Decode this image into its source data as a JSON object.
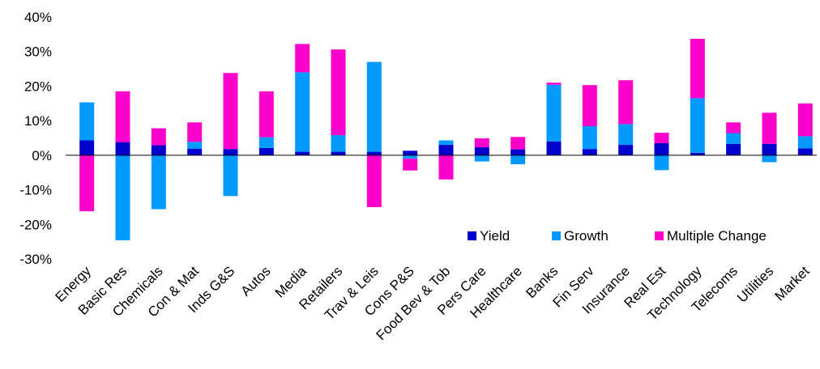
{
  "chart_data": {
    "type": "bar",
    "stacked": true,
    "categories": [
      "Energy",
      "Basic Res",
      "Chemicals",
      "Con & Mat",
      "Inds G&S",
      "Autos",
      "Media",
      "Retailers",
      "Trav & Leis",
      "Cons P&S",
      "Food Bev & Tob",
      "Pers Care",
      "Healthcare",
      "Banks",
      "Fin Serv",
      "Insurance",
      "Real Est",
      "Technology",
      "Telecoms",
      "Utilities",
      "Market"
    ],
    "series": [
      {
        "name": "Yield",
        "color": "#0000CC",
        "values": [
          4.3,
          3.8,
          2.9,
          1.9,
          1.8,
          2.1,
          1.0,
          1.0,
          1.0,
          1.3,
          3.0,
          2.3,
          1.7,
          4.0,
          1.8,
          3.0,
          3.5,
          0.7,
          3.3,
          3.3,
          2.0
        ]
      },
      {
        "name": "Growth",
        "color": "#0099FF",
        "values": [
          11.0,
          -24.6,
          -15.6,
          2.0,
          -11.8,
          3.1,
          23.0,
          4.8,
          26.0,
          -1.0,
          1.3,
          -1.8,
          -2.6,
          16.4,
          6.6,
          6.0,
          -4.3,
          15.8,
          3.1,
          -2.0,
          3.5
        ]
      },
      {
        "name": "Multiple Change",
        "color": "#FF00CC",
        "values": [
          -16.2,
          14.7,
          4.9,
          5.6,
          22.0,
          13.3,
          8.2,
          24.8,
          -15.0,
          -3.4,
          -7.0,
          2.6,
          3.6,
          0.6,
          11.9,
          12.7,
          3.0,
          17.2,
          3.1,
          9.0,
          9.5
        ]
      }
    ],
    "y_ticks": [
      "40%",
      "30%",
      "20%",
      "10%",
      "0%",
      "-10%",
      "-20%",
      "-30%"
    ],
    "ylim": [
      -30,
      40
    ],
    "legend": {
      "position": "bottom-right",
      "entries": [
        "Yield",
        "Growth",
        "Multiple Change"
      ]
    },
    "grid": false
  }
}
